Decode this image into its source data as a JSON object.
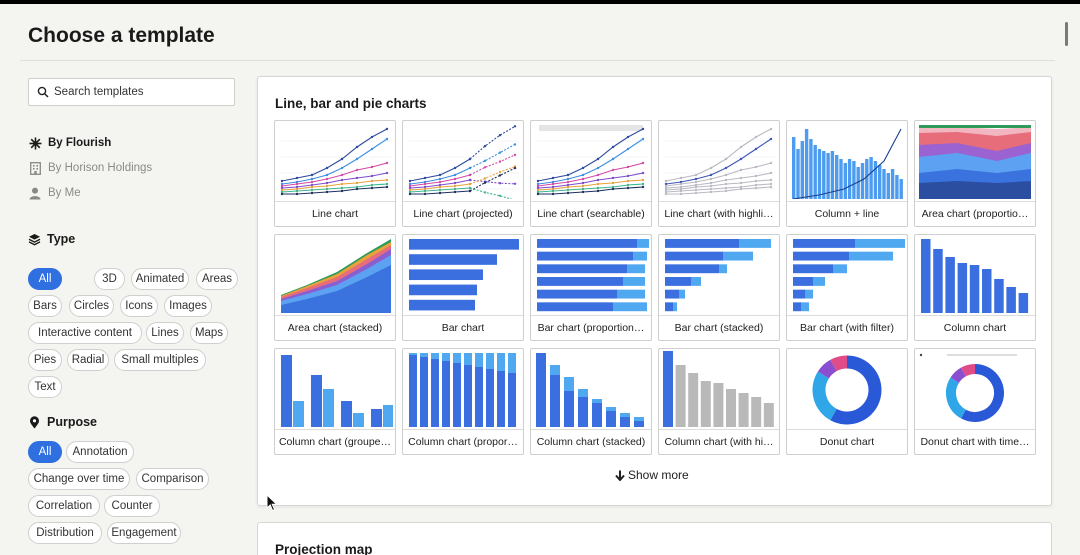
{
  "page": {
    "title": "Choose a template"
  },
  "search": {
    "placeholder": "Search templates"
  },
  "owners": [
    {
      "label": "By Flourish",
      "icon": "flourish-star-icon",
      "active": true
    },
    {
      "label": "By Horison Holdings",
      "icon": "building-icon",
      "active": false
    },
    {
      "label": "By Me",
      "icon": "user-icon",
      "active": false
    }
  ],
  "type_filter": {
    "heading": "Type",
    "icon": "layers-icon",
    "options": [
      "All",
      "3D",
      "Animated",
      "Areas",
      "Bars",
      "Circles",
      "Icons",
      "Images",
      "Interactive content",
      "Lines",
      "Maps",
      "Pies",
      "Radial",
      "Small multiples",
      "Text"
    ],
    "selected": "All"
  },
  "purpose_filter": {
    "heading": "Purpose",
    "icon": "location-pin-icon",
    "options": [
      "All",
      "Annotation",
      "Change over time",
      "Comparison",
      "Correlation",
      "Counter",
      "Distribution",
      "Engagement"
    ],
    "selected": "All"
  },
  "section": {
    "title": "Line, bar and pie charts",
    "templates": [
      {
        "label": "Line chart",
        "thumb": "line"
      },
      {
        "label": "Line chart (projected)",
        "thumb": "line-projected"
      },
      {
        "label": "Line chart (searchable)",
        "thumb": "line-searchable"
      },
      {
        "label": "Line chart (with highli…",
        "thumb": "line-highlight"
      },
      {
        "label": "Column + line",
        "thumb": "column-line"
      },
      {
        "label": "Area chart (proportio…",
        "thumb": "area-proportional"
      },
      {
        "label": "Area chart (stacked)",
        "thumb": "area-stacked"
      },
      {
        "label": "Bar chart",
        "thumb": "bar"
      },
      {
        "label": "Bar chart (proportion…",
        "thumb": "bar-proportional"
      },
      {
        "label": "Bar chart (stacked)",
        "thumb": "bar-stacked"
      },
      {
        "label": "Bar chart (with filter)",
        "thumb": "bar-filter"
      },
      {
        "label": "Column chart",
        "thumb": "column"
      },
      {
        "label": "Column chart (groupe…",
        "thumb": "column-grouped"
      },
      {
        "label": "Column chart (propor…",
        "thumb": "column-proportional"
      },
      {
        "label": "Column chart (stacked)",
        "thumb": "column-stacked"
      },
      {
        "label": "Column chart (with hi…",
        "thumb": "column-highlight"
      },
      {
        "label": "Donut chart",
        "thumb": "donut"
      },
      {
        "label": "Donut chart with time…",
        "thumb": "donut-timeline"
      }
    ],
    "show_more": "Show more"
  },
  "next_section": {
    "title": "Projection map"
  },
  "colors": {
    "accent": "#2f6fdf",
    "bar_blue": "#3b6fe0",
    "light_blue": "#4fa8f0"
  }
}
